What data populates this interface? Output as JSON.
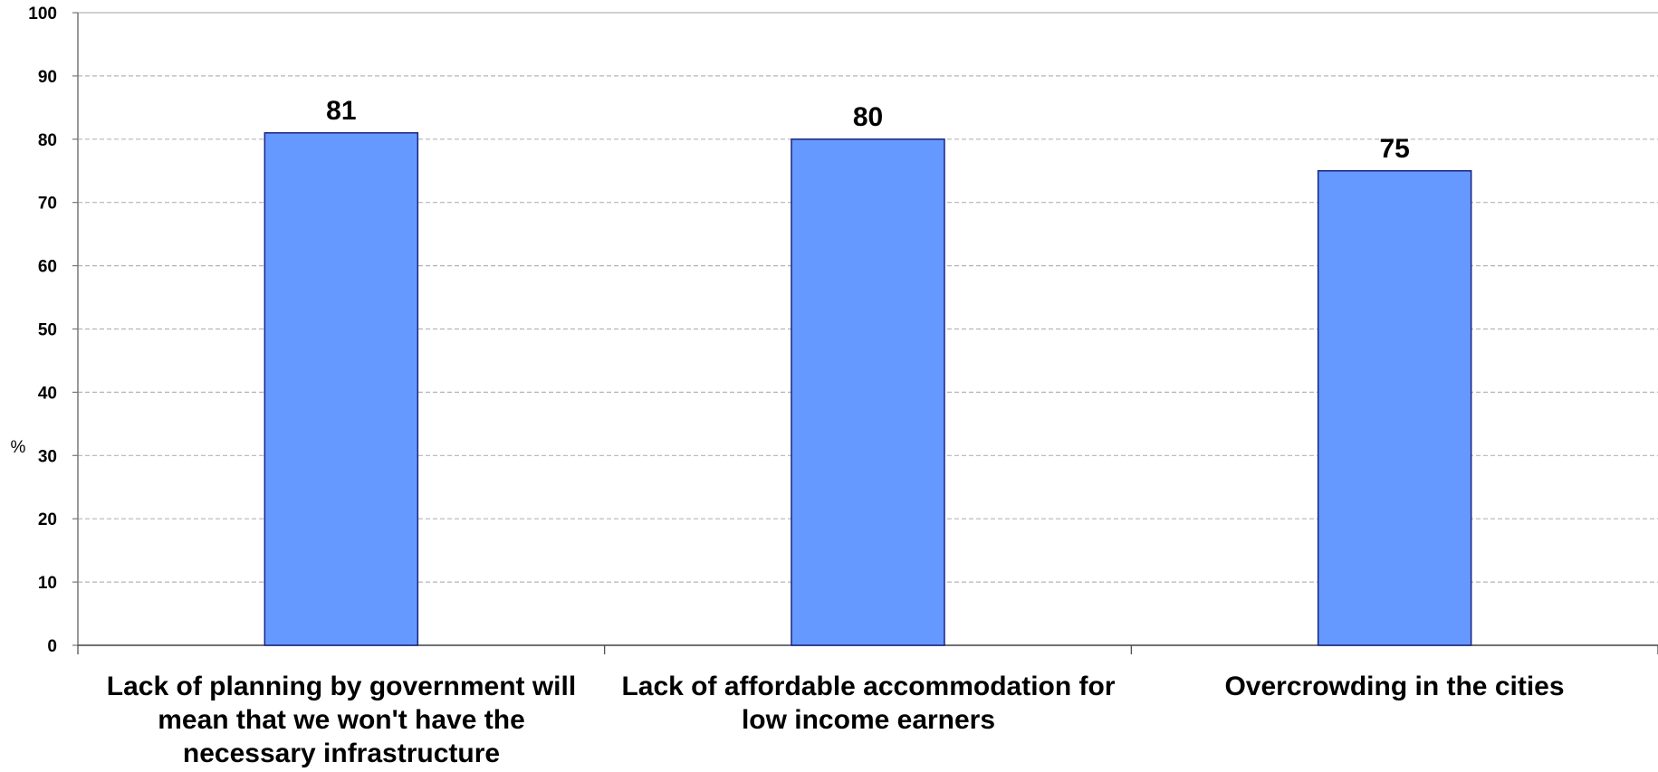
{
  "chart_data": {
    "type": "bar",
    "categories": [
      "Lack of planning by government will mean that we won't have the necessary infrastructure",
      "Lack of affordable accommodation for low income earners",
      "Overcrowding in the cities"
    ],
    "values": [
      81,
      80,
      75
    ],
    "data_labels": [
      "81",
      "80",
      "75"
    ],
    "ylabel": "%",
    "xlabel": "",
    "title": "",
    "ylim": [
      0,
      100
    ],
    "yticks": [
      "0",
      "10",
      "20",
      "30",
      "40",
      "50",
      "60",
      "70",
      "80",
      "90",
      "100"
    ],
    "grid": true,
    "bar_color": "#6699ff",
    "bar_border": "#1a237e"
  }
}
